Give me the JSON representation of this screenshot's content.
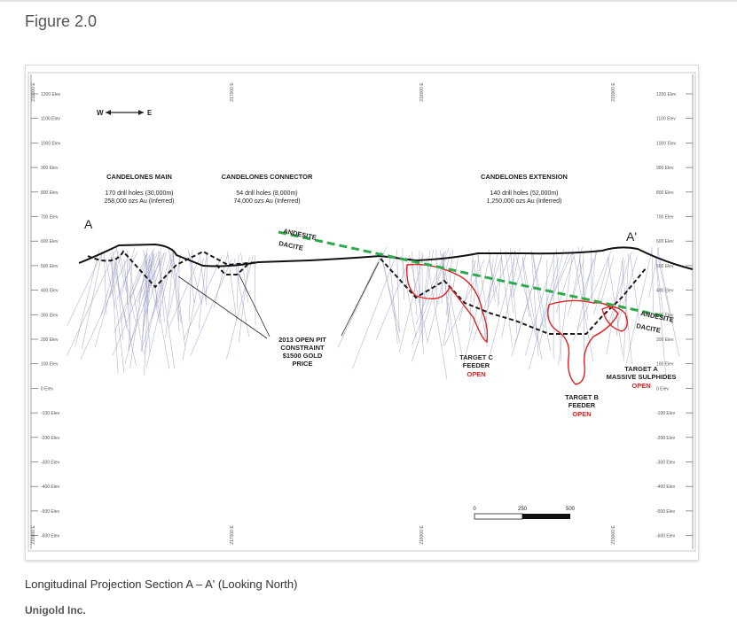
{
  "figure_title": "Figure 2.0",
  "caption": "Longitudinal Projection Section A – A' (Looking North)",
  "credit": "Unigold Inc.",
  "section": {
    "compass": {
      "west": "W",
      "east": "E"
    },
    "section_ends": {
      "start": "A",
      "end": "A'"
    },
    "elevation_labels": [
      "1200 Elev",
      "1100 Elev",
      "1000 Elev",
      "900 Elev",
      "800 Elev",
      "700 Elev",
      "600 Elev",
      "500 Elev",
      "400 Elev",
      "300 Elev",
      "200 Elev",
      "100 Elev",
      "0 Elev",
      "-100 Elev",
      "-200 Elev",
      "-300 Elev",
      "-400 Elev",
      "-500 Elev",
      "-600 Elev"
    ],
    "easting_labels": [
      "216000 E",
      "217000 E",
      "218000 E",
      "219000 E"
    ],
    "zones": [
      {
        "name": "CANDELONES MAIN",
        "holes": "170 drill holes (30,000m)",
        "resource": "258,000 ozs Au (Inferred)"
      },
      {
        "name": "CANDELONES CONNECTOR",
        "holes": "54 drill holes (8,000m)",
        "resource": "74,000 ozs Au (Inferred)"
      },
      {
        "name": "CANDELONES EXTENSION",
        "holes": "140 drill holes (52,000m)",
        "resource": "1,250,000 ozs Au (Inferred)"
      }
    ],
    "contact": {
      "upper": "ANDESITE",
      "lower": "DACITE"
    },
    "pit_label": [
      "2013 OPEN PIT",
      "CONSTRAINT",
      "$1500  GOLD",
      "PRICE"
    ],
    "targets": [
      {
        "lines": [
          "TARGET C",
          "FEEDER"
        ],
        "status": "OPEN"
      },
      {
        "lines": [
          "TARGET B",
          "FEEDER"
        ],
        "status": "OPEN"
      },
      {
        "lines": [
          "TARGET A",
          "MASSIVE SULPHIDES"
        ],
        "status": "OPEN"
      }
    ],
    "scale_bar": [
      "0",
      "250",
      "500"
    ],
    "colors": {
      "pit": "#1a1a1a",
      "contact": "#2eaa4a",
      "target": "#e02020",
      "drillholes": "#9a9cc4",
      "topography": "#111111"
    }
  }
}
